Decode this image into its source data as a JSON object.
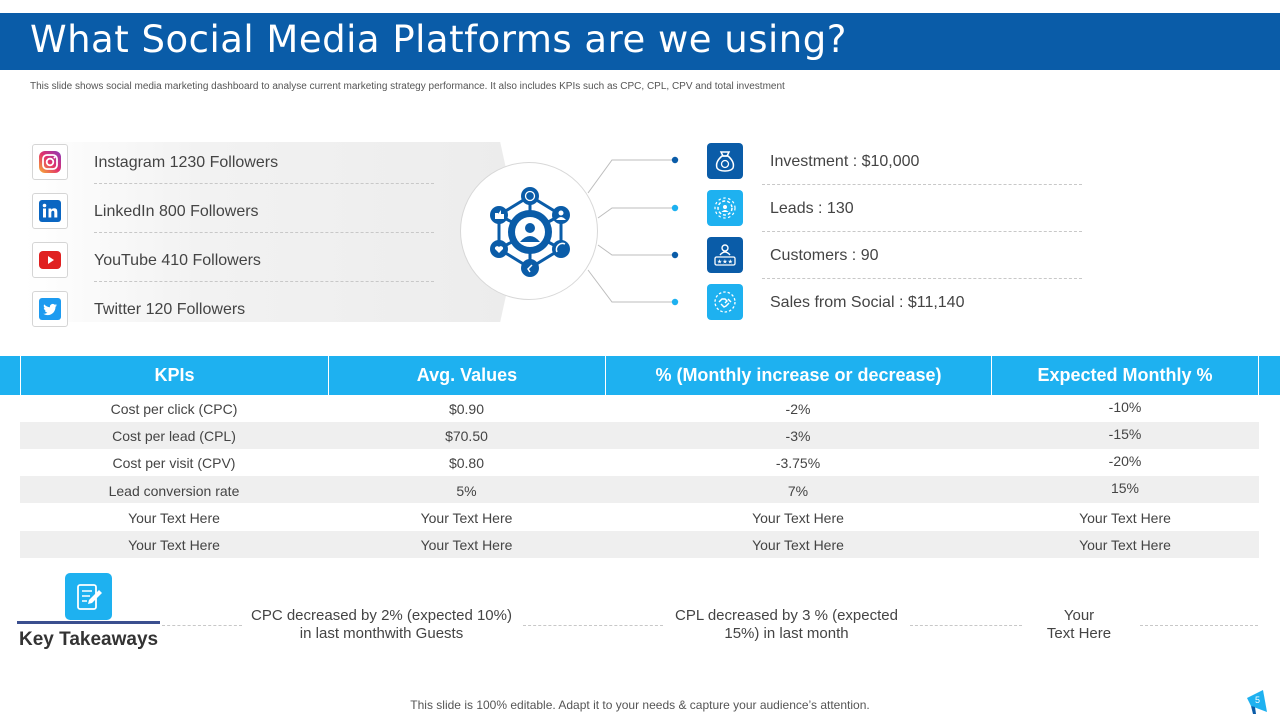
{
  "slide": {
    "title": "What Social Media Platforms are we using?",
    "subtitle": "This slide shows social media marketing dashboard to analyse current marketing strategy performance. It also includes KPIs  such as CPC,  CPL, CPV and total investment"
  },
  "platforms": [
    {
      "icon": "instagram-icon",
      "label": "Instagram  1230 Followers"
    },
    {
      "icon": "linkedin-icon",
      "label": "LinkedIn  800 Followers"
    },
    {
      "icon": "youtube-icon",
      "label": "YouTube  410 Followers"
    },
    {
      "icon": "twitter-icon",
      "label": "Twitter  120 Followers"
    }
  ],
  "hub": {
    "icon": "social-network-icon"
  },
  "metrics": [
    {
      "icon": "money-bag-icon",
      "label": "Investment   : $10,000",
      "color": "#0a5ca8"
    },
    {
      "icon": "gear-network-icon",
      "label": "Leads : 130",
      "color": "#1eb1f0"
    },
    {
      "icon": "customers-rating-icon",
      "label": "Customers  : 90",
      "color": "#0a5ca8"
    },
    {
      "icon": "handshake-icon",
      "label": "Sales from Social : $11,140",
      "color": "#1eb1f0"
    }
  ],
  "kpi_table": {
    "headers": [
      "KPIs",
      "Avg. Values",
      "% (Monthly increase or decrease)",
      "Expected Monthly %"
    ],
    "rows": [
      [
        "Cost per click (CPC)",
        "$0.90",
        "-2%",
        "-10%"
      ],
      [
        "Cost per lead (CPL)",
        "$70.50",
        "-3%",
        "-15%"
      ],
      [
        "Cost per visit (CPV)",
        "$0.80",
        "-3.75%",
        "-20%"
      ],
      [
        "Lead conversion rate",
        "5%",
        "7%",
        "15%"
      ],
      [
        "Your Text Here",
        "Your Text Here",
        "Your Text Here",
        "Your Text Here"
      ],
      [
        "Your Text Here",
        "Your Text Here",
        "Your Text Here",
        "Your Text Here"
      ]
    ]
  },
  "takeaways": {
    "label": "Key Takeaways",
    "items": [
      {
        "line1": "CPC decreased by 2% (expected 10%)",
        "line2": "in last monthwith Guests"
      },
      {
        "line1": "CPL decreased by 3 % (expected",
        "line2": "15%) in last month"
      },
      {
        "line1": "Your",
        "line2": "Text Here"
      }
    ]
  },
  "footer": {
    "note": "This slide is 100% editable. Adapt it to your needs & capture your audience’s attention.",
    "page_number": "5"
  },
  "colors": {
    "dark_blue": "#0a5ca8",
    "light_blue": "#1eb1f0",
    "accent_navy": "#3b4f8f"
  }
}
